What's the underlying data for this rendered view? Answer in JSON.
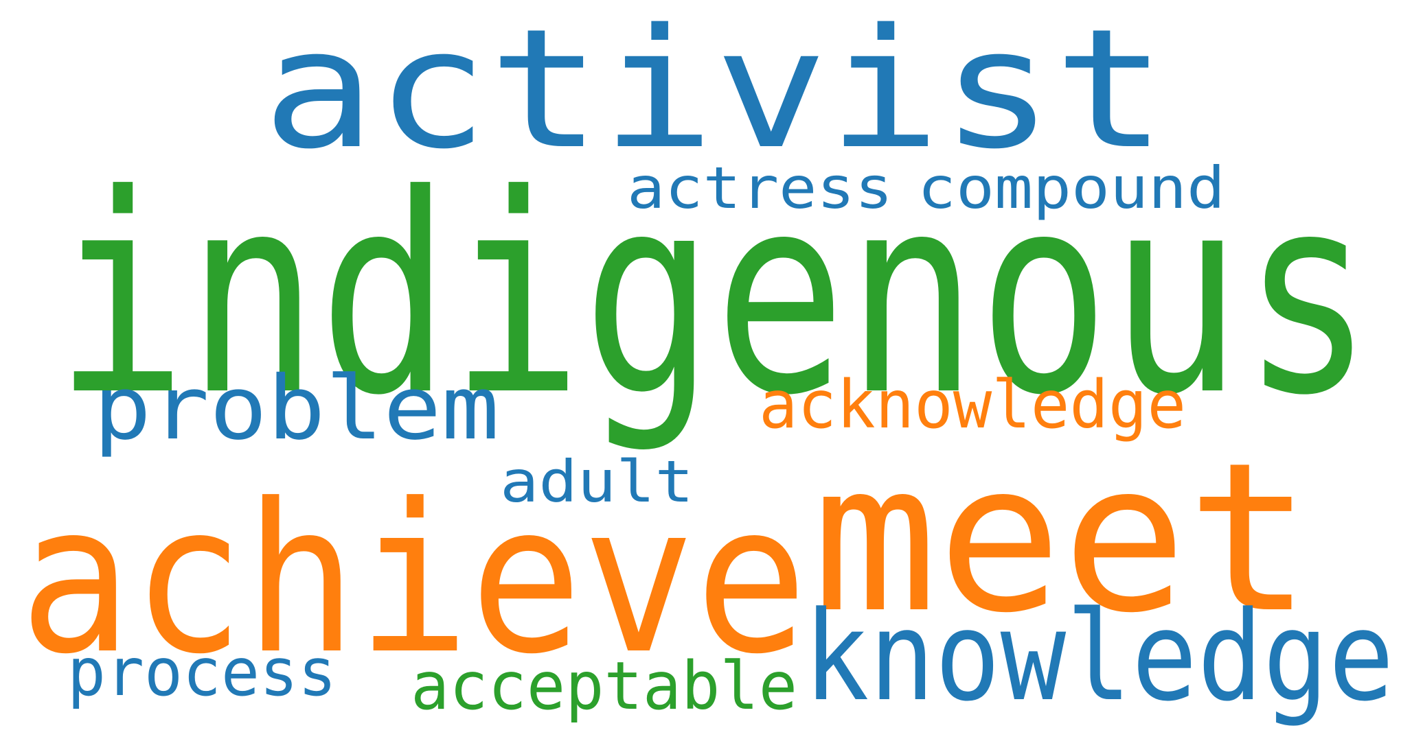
{
  "colors": {
    "blue": "#2179b6",
    "green": "#2ca02c",
    "orange": "#ff7f0e"
  },
  "words": [
    {
      "id": "activist",
      "text": "activist",
      "color": "blue"
    },
    {
      "id": "actress",
      "text": "actress",
      "color": "blue"
    },
    {
      "id": "compound",
      "text": "compound",
      "color": "blue"
    },
    {
      "id": "indigenous",
      "text": "indigenous",
      "color": "green"
    },
    {
      "id": "problem",
      "text": "problem",
      "color": "blue"
    },
    {
      "id": "acknowledge",
      "text": "acknowledge",
      "color": "orange"
    },
    {
      "id": "adult",
      "text": "adult",
      "color": "blue"
    },
    {
      "id": "meet",
      "text": "meet",
      "color": "orange"
    },
    {
      "id": "achieve",
      "text": "achieve",
      "color": "orange"
    },
    {
      "id": "knowledge",
      "text": "knowledge",
      "color": "blue"
    },
    {
      "id": "process",
      "text": "process",
      "color": "blue"
    },
    {
      "id": "acceptable",
      "text": "acceptable",
      "color": "green"
    }
  ]
}
